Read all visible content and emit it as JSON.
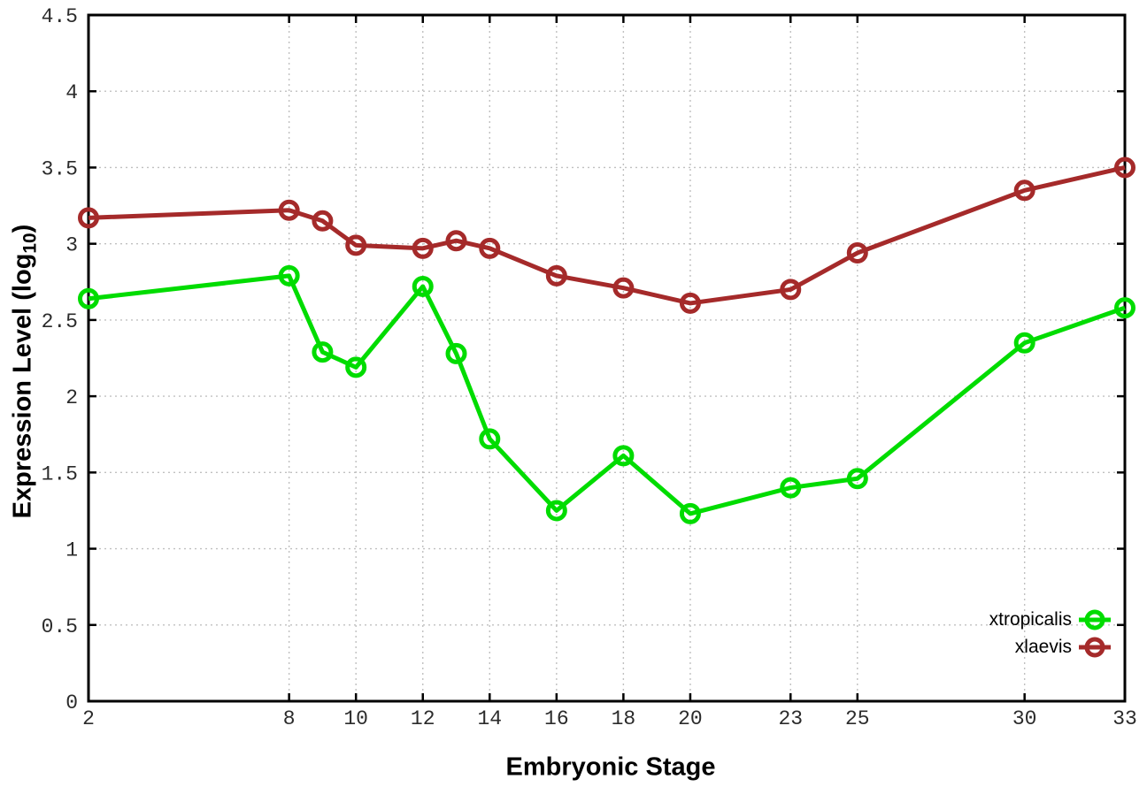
{
  "chart_data": {
    "type": "line",
    "title": "",
    "xlabel": "Embryonic Stage",
    "ylabel": "Expression Level (log10)",
    "ylabel_prefix": "Expression Level (log",
    "ylabel_sub": "10",
    "ylabel_suffix": ")",
    "x": [
      2,
      8,
      9,
      10,
      12,
      13,
      14,
      16,
      18,
      20,
      23,
      25,
      30,
      33
    ],
    "series": [
      {
        "name": "xtropicalis",
        "color": "#00DC00",
        "values": [
          2.64,
          2.79,
          2.29,
          2.19,
          2.72,
          2.28,
          1.72,
          1.25,
          1.61,
          1.23,
          1.4,
          1.46,
          2.35,
          2.58
        ]
      },
      {
        "name": "xlaevis",
        "color": "#A52A2A",
        "values": [
          3.17,
          3.22,
          3.15,
          2.99,
          2.97,
          3.02,
          2.97,
          2.79,
          2.71,
          2.61,
          2.7,
          2.94,
          3.35,
          3.5
        ]
      }
    ],
    "xticks": [
      2,
      8,
      10,
      12,
      14,
      16,
      18,
      20,
      23,
      25,
      30,
      33
    ],
    "ytick_labels": [
      "0",
      "0.5",
      "1",
      "1.5",
      "2",
      "2.5",
      "3",
      "3.5",
      "4",
      "4.5"
    ],
    "xlim": [
      2,
      33
    ],
    "ylim": [
      0,
      4.5
    ],
    "grid": true,
    "legend_position": "bottom-right",
    "background_color": "#ffffff",
    "grid_color": "#c0c0c0",
    "axis_color": "#000000",
    "tick_label_color": "#2b2b2b"
  }
}
